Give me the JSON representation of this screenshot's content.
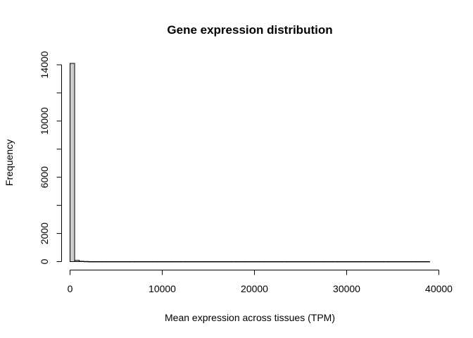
{
  "chart_data": {
    "type": "bar",
    "title": "Gene expression distribution",
    "xlabel": "Mean expression across tissues (TPM)",
    "ylabel": "Frequency",
    "xlim": [
      0,
      40000
    ],
    "ylim": [
      0,
      14000
    ],
    "x_ticks": [
      0,
      10000,
      20000,
      30000,
      40000
    ],
    "y_ticks": [
      0,
      2000,
      6000,
      10000,
      14000
    ],
    "y_minor_ticks": [
      4000,
      8000,
      12000
    ],
    "bin_width": 500,
    "bins": [
      {
        "start": 0,
        "end": 500,
        "count": 14100
      },
      {
        "start": 500,
        "end": 1000,
        "count": 90
      },
      {
        "start": 1000,
        "end": 1500,
        "count": 25
      },
      {
        "start": 1500,
        "end": 2000,
        "count": 12
      }
    ],
    "tail_range": [
      2000,
      39000
    ],
    "tail_count": 3,
    "grid": false,
    "bar_color": "#cccccc"
  }
}
